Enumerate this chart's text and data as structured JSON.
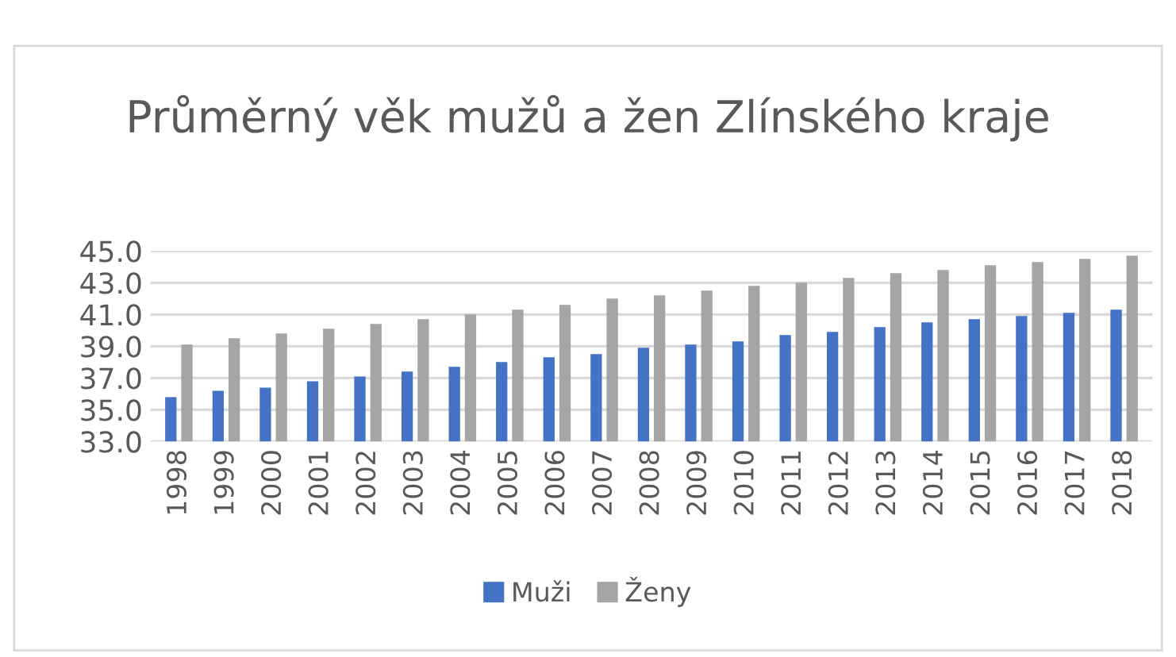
{
  "chart_data": {
    "type": "bar",
    "title": "Průměrný věk mužů a žen Zlínského kraje",
    "categories": [
      "1998",
      "1999",
      "2000",
      "2001",
      "2002",
      "2003",
      "2004",
      "2005",
      "2006",
      "2007",
      "2008",
      "2009",
      "2010",
      "2011",
      "2012",
      "2013",
      "2014",
      "2015",
      "2016",
      "2017",
      "2018"
    ],
    "series": [
      {
        "name": "Muži",
        "color": "#4472c4",
        "values": [
          35.8,
          36.2,
          36.4,
          36.8,
          37.1,
          37.4,
          37.7,
          38.0,
          38.3,
          38.5,
          38.9,
          39.1,
          39.3,
          39.7,
          39.9,
          40.2,
          40.5,
          40.7,
          40.9,
          41.1,
          41.3
        ]
      },
      {
        "name": "Ženy",
        "color": "#a5a5a5",
        "values": [
          39.1,
          39.5,
          39.8,
          40.1,
          40.4,
          40.7,
          41.0,
          41.3,
          41.6,
          42.0,
          42.2,
          42.5,
          42.8,
          43.0,
          43.3,
          43.6,
          43.8,
          44.1,
          44.3,
          44.5,
          44.7
        ]
      }
    ],
    "ylim": [
      33,
      45
    ],
    "yticks": [
      {
        "value": 33,
        "label": "33.0"
      },
      {
        "value": 35,
        "label": "35.0"
      },
      {
        "value": 37,
        "label": "37.0"
      },
      {
        "value": 39,
        "label": "39.0"
      },
      {
        "value": 41,
        "label": "41.0"
      },
      {
        "value": 43,
        "label": "43.0"
      },
      {
        "value": 45,
        "label": "45.0"
      }
    ],
    "grid": "y",
    "legend": "bottom"
  }
}
